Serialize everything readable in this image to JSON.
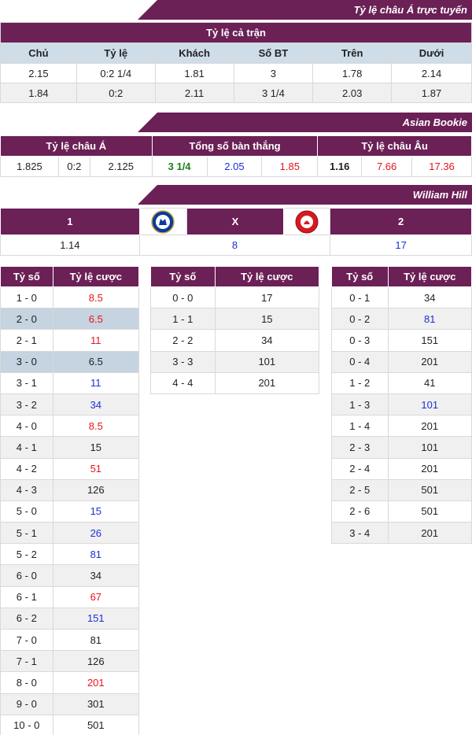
{
  "banners": {
    "asian_online": "Tỷ lệ châu Á trực tuyến",
    "asian_bookie": "Asian Bookie",
    "william_hill": "William Hill"
  },
  "full_match": {
    "title": "Tỷ lệ cả trận",
    "headers": [
      "Chủ",
      "Tỷ lệ",
      "Khách",
      "Số BT",
      "Trên",
      "Dưới"
    ],
    "rows": [
      [
        "2.15",
        "0:2 1/4",
        "1.81",
        "3",
        "1.78",
        "2.14"
      ],
      [
        "1.84",
        "0:2",
        "2.11",
        "3 1/4",
        "2.03",
        "1.87"
      ]
    ]
  },
  "asian_bookie": {
    "headers": [
      "Tỷ lệ châu Á",
      "Tổng số bàn thắng",
      "Tỷ lệ châu Âu"
    ],
    "asian": [
      "1.825",
      "0:2",
      "2.125"
    ],
    "totals": [
      "3 1/4",
      "2.05",
      "1.85"
    ],
    "euro": [
      "1.16",
      "7.66",
      "17.36"
    ]
  },
  "william_hill": {
    "labels": [
      "1",
      "X",
      "2"
    ],
    "values": [
      "1.14",
      "8",
      "17"
    ],
    "home_logo": "chelsea-crest-icon",
    "away_logo": "middlesbrough-crest-icon"
  },
  "score_headers": [
    "Tỷ số",
    "Tỷ lệ cược"
  ],
  "home_wins": [
    [
      "1 - 0",
      "8.5",
      "red",
      ""
    ],
    [
      "2 - 0",
      "6.5",
      "red",
      "hl"
    ],
    [
      "2 - 1",
      "11",
      "red",
      ""
    ],
    [
      "3 - 0",
      "6.5",
      "",
      "hl"
    ],
    [
      "3 - 1",
      "11",
      "blue",
      ""
    ],
    [
      "3 - 2",
      "34",
      "blue",
      ""
    ],
    [
      "4 - 0",
      "8.5",
      "red",
      ""
    ],
    [
      "4 - 1",
      "15",
      "",
      ""
    ],
    [
      "4 - 2",
      "51",
      "red",
      ""
    ],
    [
      "4 - 3",
      "126",
      "",
      ""
    ],
    [
      "5 - 0",
      "15",
      "blue",
      ""
    ],
    [
      "5 - 1",
      "26",
      "blue",
      ""
    ],
    [
      "5 - 2",
      "81",
      "blue",
      ""
    ],
    [
      "6 - 0",
      "34",
      "",
      ""
    ],
    [
      "6 - 1",
      "67",
      "red",
      ""
    ],
    [
      "6 - 2",
      "151",
      "blue",
      ""
    ],
    [
      "7 - 0",
      "81",
      "",
      ""
    ],
    [
      "7 - 1",
      "126",
      "",
      ""
    ],
    [
      "8 - 0",
      "201",
      "red",
      ""
    ],
    [
      "9 - 0",
      "301",
      "",
      ""
    ],
    [
      "10 - 0",
      "501",
      "",
      ""
    ]
  ],
  "draws": [
    [
      "0 - 0",
      "17",
      "",
      ""
    ],
    [
      "1 - 1",
      "15",
      "",
      ""
    ],
    [
      "2 - 2",
      "34",
      "",
      ""
    ],
    [
      "3 - 3",
      "101",
      "",
      ""
    ],
    [
      "4 - 4",
      "201",
      "",
      ""
    ]
  ],
  "away_wins": [
    [
      "0 - 1",
      "34",
      "",
      ""
    ],
    [
      "0 - 2",
      "81",
      "blue",
      ""
    ],
    [
      "0 - 3",
      "151",
      "",
      ""
    ],
    [
      "0 - 4",
      "201",
      "",
      ""
    ],
    [
      "1 - 2",
      "41",
      "",
      ""
    ],
    [
      "1 - 3",
      "101",
      "blue",
      ""
    ],
    [
      "1 - 4",
      "201",
      "",
      ""
    ],
    [
      "2 - 3",
      "101",
      "",
      ""
    ],
    [
      "2 - 4",
      "201",
      "",
      ""
    ],
    [
      "2 - 5",
      "501",
      "",
      ""
    ],
    [
      "2 - 6",
      "501",
      "",
      ""
    ],
    [
      "3 - 4",
      "201",
      "",
      ""
    ]
  ]
}
